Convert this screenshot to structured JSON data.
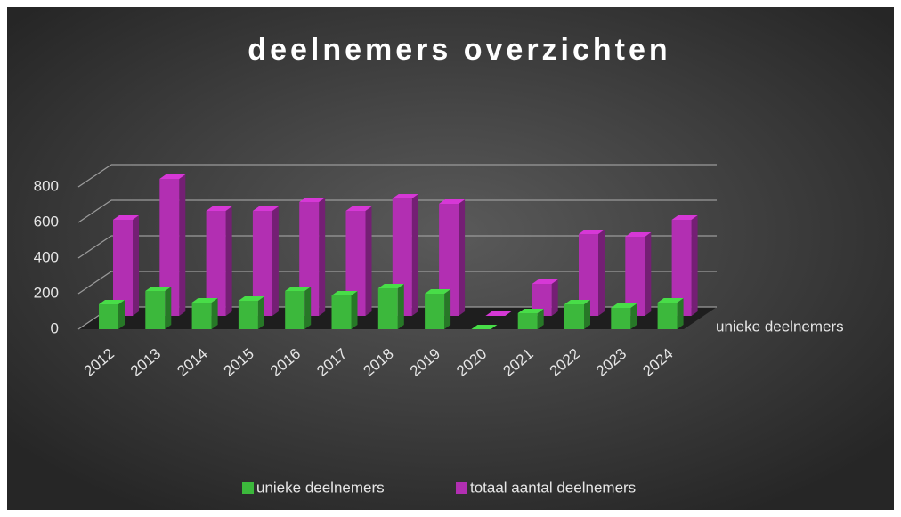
{
  "chart_data": {
    "type": "bar3d",
    "title": "deelnemers overzichten",
    "categories": [
      "2012",
      "2013",
      "2014",
      "2015",
      "2016",
      "2017",
      "2018",
      "2019",
      "2020",
      "2021",
      "2022",
      "2023",
      "2024"
    ],
    "series": [
      {
        "name": "unieke deelnemers",
        "color": "#3cb83c",
        "values": [
          140,
          215,
          150,
          160,
          215,
          190,
          230,
          200,
          0,
          90,
          140,
          120,
          150
        ]
      },
      {
        "name": "totaal aantal deelnemers",
        "color": "#b22fb2",
        "values": [
          540,
          770,
          590,
          590,
          640,
          590,
          660,
          630,
          0,
          180,
          460,
          445,
          540
        ]
      }
    ],
    "ylim": [
      0,
      800
    ],
    "yticks": [
      0,
      200,
      400,
      600,
      800
    ],
    "grid": true
  }
}
